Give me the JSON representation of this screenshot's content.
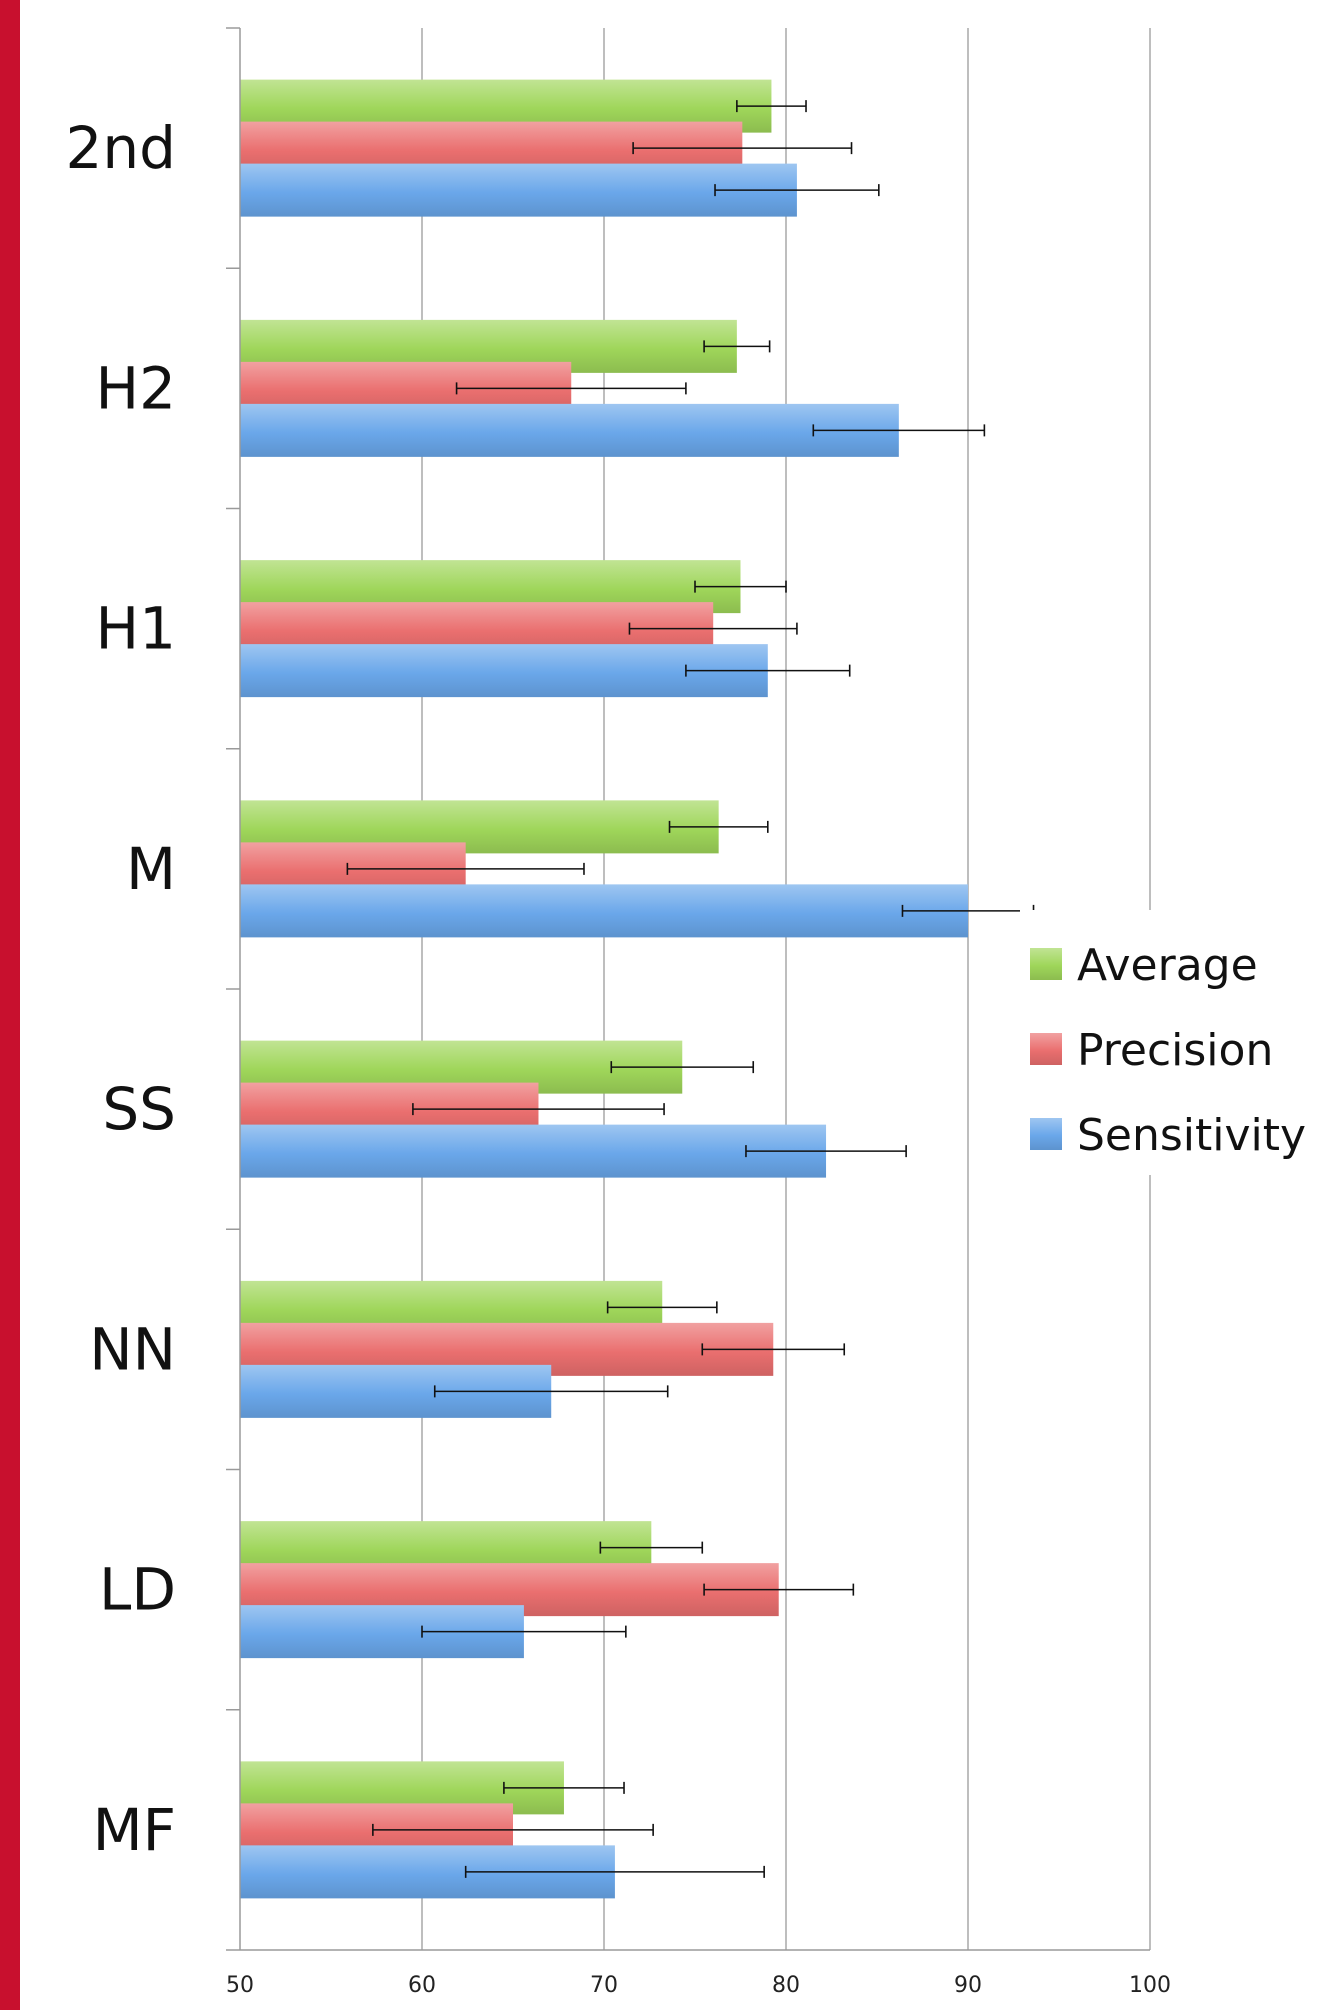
{
  "chart_data": {
    "type": "bar",
    "orientation": "horizontal",
    "categories": [
      "2nd",
      "H2",
      "H1",
      "M",
      "SS",
      "NN",
      "LD",
      "MF"
    ],
    "series": [
      {
        "name": "Average",
        "color": "#9fd65a",
        "values": [
          79.2,
          77.3,
          77.5,
          76.3,
          74.3,
          73.2,
          72.6,
          67.8
        ],
        "error": [
          1.9,
          1.8,
          2.5,
          2.7,
          3.9,
          3.0,
          2.8,
          3.3
        ]
      },
      {
        "name": "Precision",
        "color": "#ea6f6f",
        "values": [
          77.6,
          68.2,
          76.0,
          62.4,
          66.4,
          79.3,
          79.6,
          65.0
        ],
        "error": [
          6.0,
          6.3,
          4.6,
          6.5,
          6.9,
          3.9,
          4.1,
          7.7
        ]
      },
      {
        "name": "Sensitivity",
        "color": "#6aa7ea",
        "values": [
          80.6,
          86.2,
          79.0,
          90.0,
          82.2,
          67.1,
          65.6,
          70.6
        ],
        "error": [
          4.5,
          4.7,
          4.5,
          3.6,
          4.4,
          6.4,
          5.6,
          8.2
        ]
      }
    ],
    "xlim": [
      50,
      100
    ],
    "xticks": [
      "50",
      "60",
      "70",
      "80",
      "90",
      "100"
    ],
    "grid": true,
    "legend": "right",
    "xlabel": "",
    "ylabel": "",
    "title": ""
  }
}
